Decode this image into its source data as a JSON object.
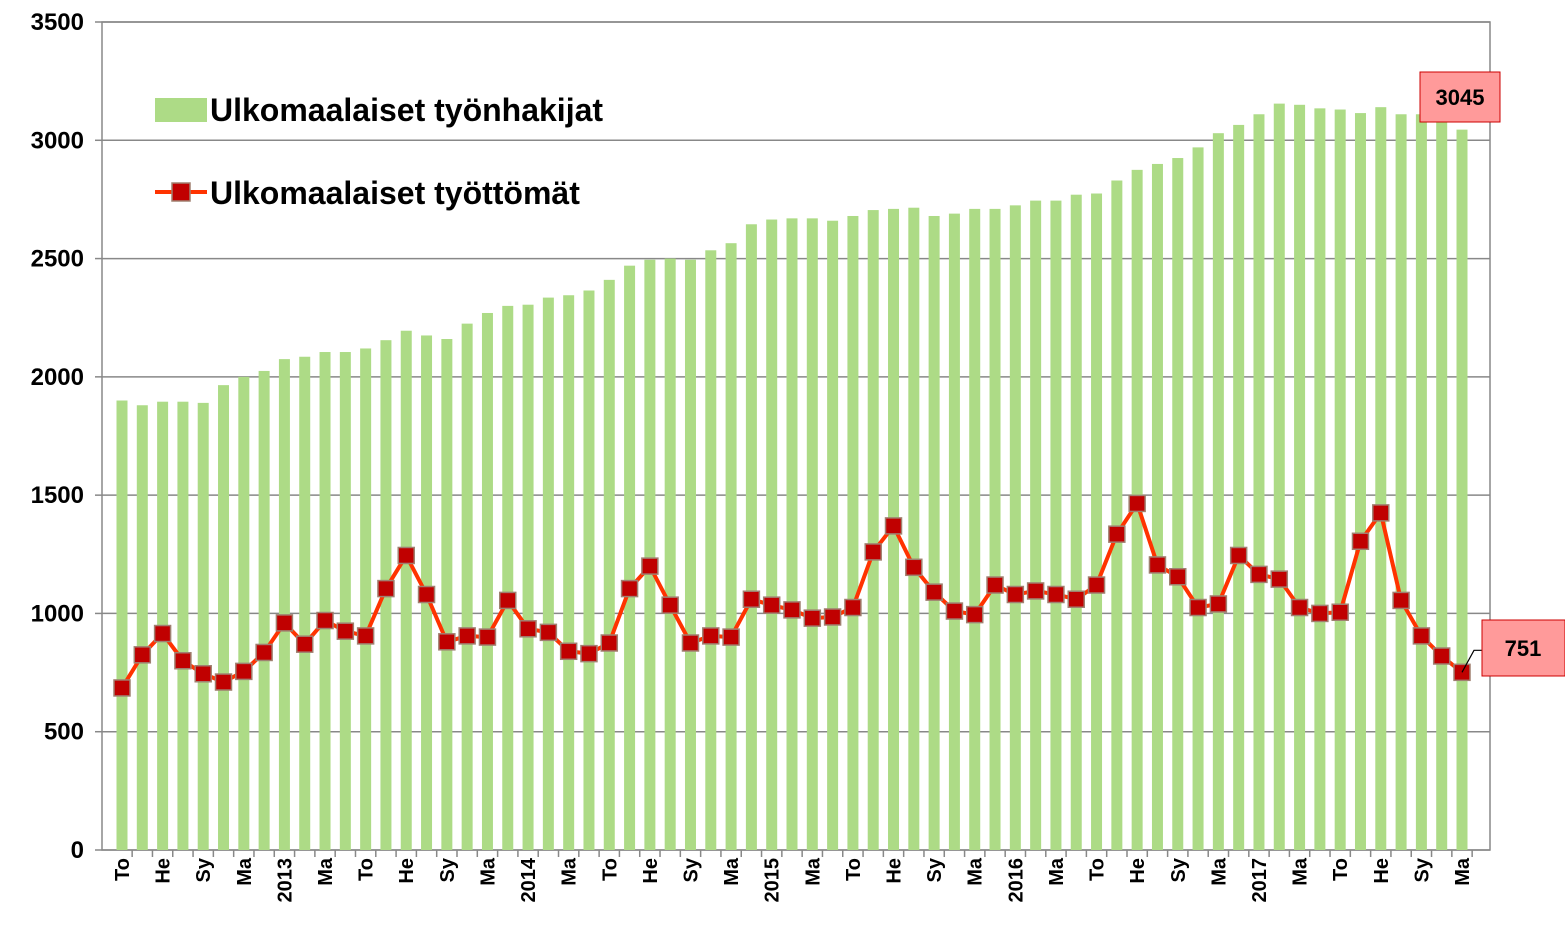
{
  "chart_data": {
    "type": "bar_line",
    "categories": [
      "To",
      null,
      "He",
      null,
      "Sy",
      null,
      "Ma",
      null,
      "2013",
      null,
      "Ma",
      null,
      "To",
      null,
      "He",
      null,
      "Sy",
      null,
      "Ma",
      null,
      "2014",
      null,
      "Ma",
      null,
      "To",
      null,
      "He",
      null,
      "Sy",
      null,
      "Ma",
      null,
      "2015",
      null,
      "Ma",
      null,
      "To",
      null,
      "He",
      null,
      "Sy",
      null,
      "Ma",
      null,
      "2016",
      null,
      "Ma",
      null,
      "To",
      null,
      "He",
      null,
      "Sy",
      null,
      "Ma",
      null,
      "2017",
      null,
      "Ma",
      null,
      "To",
      null,
      "He",
      null,
      "Sy",
      null,
      "Ma"
    ],
    "series": [
      {
        "name": "Ulkomaalaiset työnhakijat",
        "type": "bar",
        "color": "#addb86",
        "values": [
          1900,
          1880,
          1895,
          1895,
          1890,
          1965,
          2000,
          2025,
          2075,
          2085,
          2105,
          2105,
          2120,
          2155,
          2195,
          2175,
          2160,
          2225,
          2270,
          2300,
          2305,
          2335,
          2345,
          2365,
          2410,
          2470,
          2495,
          2500,
          2495,
          2535,
          2565,
          2645,
          2665,
          2670,
          2670,
          2660,
          2680,
          2705,
          2710,
          2715,
          2680,
          2690,
          2710,
          2710,
          2725,
          2745,
          2745,
          2770,
          2775,
          2830,
          2875,
          2900,
          2925,
          2970,
          3030,
          3065,
          3110,
          3155,
          3150,
          3135,
          3130,
          3115,
          3140,
          3110,
          3110,
          3090,
          3045
        ]
      },
      {
        "name": "Ulkomaalaiset työttömät",
        "type": "line",
        "color": "#ff3300",
        "marker_color": "#c00000",
        "values": [
          685,
          825,
          915,
          800,
          745,
          710,
          755,
          835,
          960,
          870,
          970,
          925,
          905,
          1105,
          1245,
          1080,
          880,
          905,
          900,
          1055,
          935,
          920,
          840,
          830,
          875,
          1105,
          1200,
          1035,
          875,
          905,
          900,
          1060,
          1035,
          1015,
          980,
          985,
          1025,
          1260,
          1370,
          1195,
          1090,
          1010,
          995,
          1120,
          1080,
          1095,
          1080,
          1060,
          1120,
          1335,
          1465,
          1205,
          1155,
          1025,
          1040,
          1245,
          1165,
          1145,
          1025,
          1000,
          1005,
          1305,
          1425,
          1055,
          905,
          820,
          751
        ]
      }
    ],
    "ylim": [
      0,
      3500
    ],
    "yticks": [
      0,
      500,
      1000,
      1500,
      2000,
      2500,
      3000,
      3500
    ],
    "grid": true,
    "legend": "top-left"
  }
}
